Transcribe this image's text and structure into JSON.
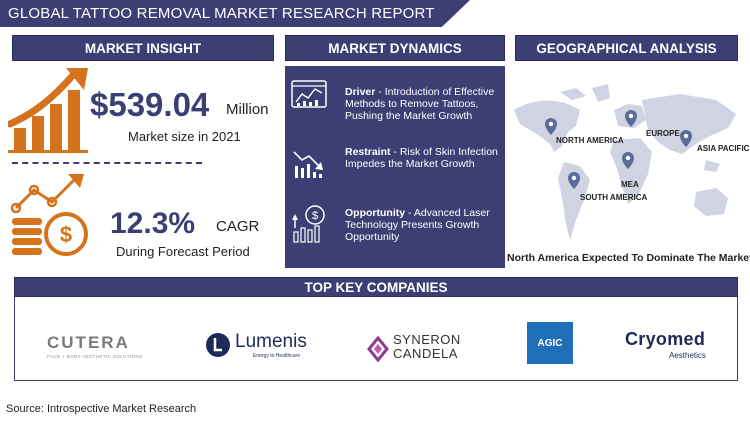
{
  "title": "GLOBAL TATTOO REMOVAL MARKET RESEARCH REPORT",
  "sections": {
    "insight": "MARKET INSIGHT",
    "dynamics": "MARKET DYNAMICS",
    "geography": "GEOGRAPHICAL ANALYSIS",
    "companies": "TOP KEY COMPANIES"
  },
  "insight": {
    "market_value": "$539.04",
    "market_unit": "Million",
    "market_caption": "Market size in 2021",
    "cagr_value": "12.3%",
    "cagr_unit": "CAGR",
    "cagr_caption": "During Forecast Period"
  },
  "dynamics": [
    {
      "label": "Driver",
      "text": " - Introduction of Effective Methods to Remove Tattoos, Pushing the Market Growth",
      "icon": "dashboard-chart-icon"
    },
    {
      "label": "Restraint",
      "text": " - Risk of Skin Infection Impedes the Market Growth",
      "icon": "declining-chart-icon"
    },
    {
      "label": "Opportunity",
      "text": " - Advanced Laser Technology Presents Growth Opportunity",
      "icon": "growth-coin-icon"
    }
  ],
  "geography": {
    "regions": [
      "NORTH AMERICA",
      "EUROPE",
      "ASIA PACIFIC",
      "MEA",
      "SOUTH AMERICA"
    ],
    "caption": "North America Expected To Dominate The Market"
  },
  "companies": {
    "cutera": {
      "name": "CUTERA",
      "tagline": "FACE + BODY AESTHETIC SOLUTIONS"
    },
    "lumenis": {
      "name": "Lumenis",
      "tagline": "Energy to Healthcare"
    },
    "syneron": {
      "line1": "SYNERON",
      "line2": "CANDELA"
    },
    "agic": {
      "name": "AGIC"
    },
    "cryomed": {
      "name": "Cryomed",
      "tagline": "Aesthetics"
    }
  },
  "source": "Source: Introspective Market Research",
  "colors": {
    "navy": "#3b3f73",
    "orange": "#d4731c",
    "map_gray": "#cfd3e2",
    "pin": "#5b6c9c"
  }
}
